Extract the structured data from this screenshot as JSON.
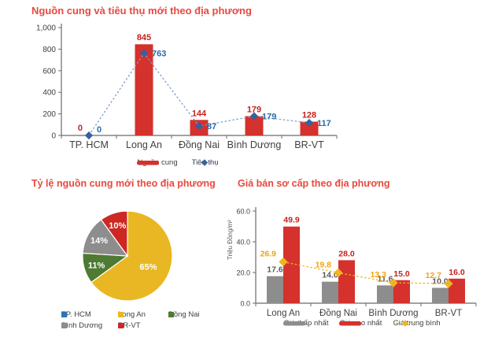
{
  "colors": {
    "title": "#e8493f",
    "axis": "#6b6b6b",
    "text": "#404040",
    "bar_red": "#d5312d",
    "label_red": "#c4221d",
    "line_blue": "#7f9dcb",
    "marker_blue": "#35619f",
    "label_blue": "#2a6ca6",
    "bar_gray": "#8d8d8d",
    "label_gray": "#595959",
    "line_yellow": "#efb51e",
    "label_yellow": "#efa311",
    "pie_blue": "#2e74b5",
    "pie_yellow": "#e9b723",
    "pie_green": "#4e7a33",
    "pie_gray": "#8d8d8d",
    "pie_red": "#cd2823"
  },
  "chart_data": [
    {
      "id": "supply",
      "type": "bar-line",
      "title": "Nguồn cung và tiêu thụ mới theo địa phương",
      "categories": [
        "TP. HCM",
        "Long An",
        "Đồng Nai",
        "Bình Dương",
        "BR-VT"
      ],
      "series": [
        {
          "name": "Nguồn cung",
          "type": "bar",
          "color": "#d5312d",
          "label_color": "#c4221d",
          "values": [
            0,
            845,
            144,
            179,
            128
          ],
          "labels": [
            "0",
            "845",
            "144",
            "179",
            "128"
          ]
        },
        {
          "name": "Tiêu thụ",
          "type": "line",
          "color": "#7f9dcb",
          "marker_color": "#35619f",
          "label_color": "#2a6ca6",
          "values": [
            0,
            763,
            87,
            179,
            117
          ],
          "labels": [
            "0",
            "763",
            "87",
            "179",
            "117"
          ]
        }
      ],
      "ylim": [
        0,
        1000
      ],
      "yticks": [
        0,
        200,
        400,
        600,
        800,
        1000
      ],
      "ytick_labels": [
        "0",
        "200",
        "400",
        "600",
        "800",
        "1,000"
      ],
      "grid": false,
      "legend_position": "bottom"
    },
    {
      "id": "share",
      "type": "pie",
      "title": "Tỷ lệ nguồn cung mới theo địa phương",
      "slices": [
        {
          "label": "TP. HCM",
          "value": 0,
          "pct_label": "",
          "color": "#2e74b5"
        },
        {
          "label": "Long An",
          "value": 65,
          "pct_label": "65%",
          "color": "#e9b723"
        },
        {
          "label": "Đồng Nai",
          "value": 11,
          "pct_label": "11%",
          "color": "#4e7a33"
        },
        {
          "label": "Bình Dương",
          "value": 14,
          "pct_label": "14%",
          "color": "#8d8d8d"
        },
        {
          "label": "BR-VT",
          "value": 10,
          "pct_label": "10%",
          "color": "#cd2823"
        }
      ],
      "legend_position": "bottom"
    },
    {
      "id": "price",
      "type": "grouped-bar-line",
      "title": "Giá bán sơ cấp theo địa phương",
      "ylabel": "Triệu Đồng/m²",
      "categories": [
        "Long An",
        "Đồng Nai",
        "Bình Dương",
        "BR-VT"
      ],
      "series": [
        {
          "name": "Giá thấp nhất",
          "type": "bar",
          "color": "#8d8d8d",
          "label_color": "#595959",
          "values": [
            17.6,
            14.0,
            11.6,
            10.0
          ],
          "labels": [
            "17.6",
            "14.0",
            "11.6",
            "10.0"
          ]
        },
        {
          "name": "Giá cao nhất",
          "type": "bar",
          "color": "#d5312d",
          "label_color": "#c4221d",
          "values": [
            49.9,
            28.0,
            15.0,
            16.0
          ],
          "labels": [
            "49.9",
            "28.0",
            "15.0",
            "16.0"
          ]
        },
        {
          "name": "Giá trung bình",
          "type": "line",
          "color": "#efb51e",
          "marker_color": "#efb51e",
          "label_color": "#efa311",
          "values": [
            26.9,
            19.8,
            13.3,
            12.7
          ],
          "labels": [
            "26.9",
            "19.8",
            "13.3",
            "12.7"
          ]
        }
      ],
      "ylim": [
        0,
        60
      ],
      "yticks": [
        0,
        20,
        40,
        60
      ],
      "ytick_labels": [
        "0.0",
        "20.0",
        "40.0",
        "60.0"
      ],
      "grid": false,
      "legend_position": "bottom"
    }
  ]
}
